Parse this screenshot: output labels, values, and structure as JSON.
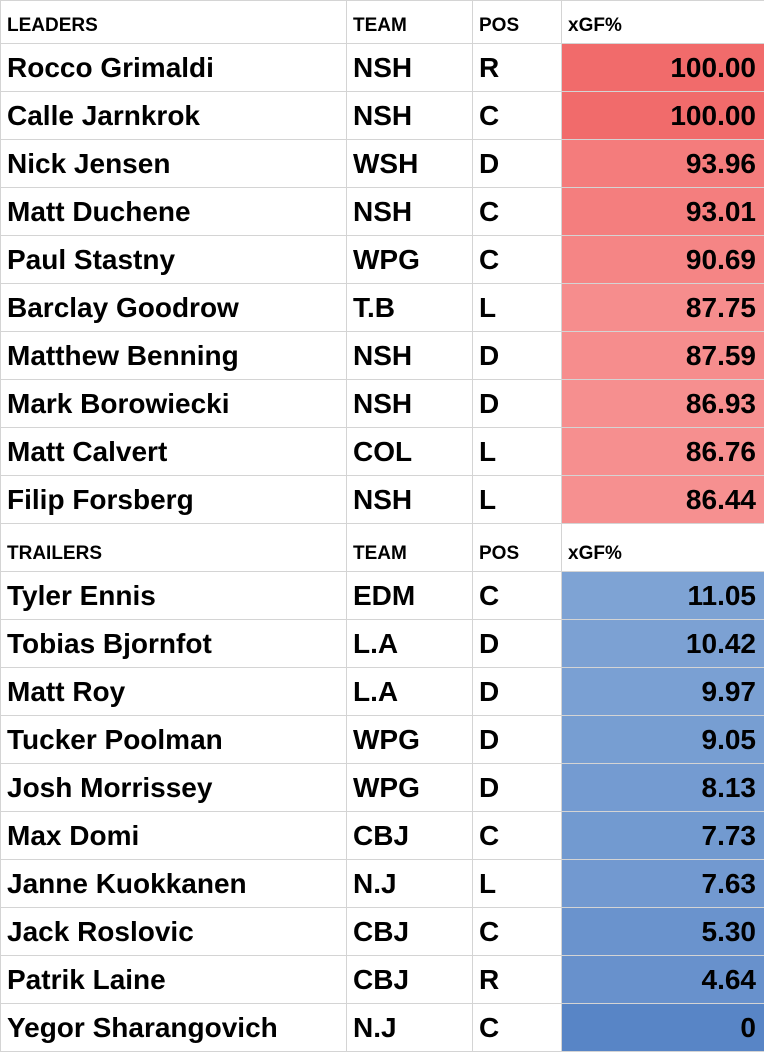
{
  "leaders": {
    "header": {
      "name": "LEADERS",
      "team": "TEAM",
      "pos": "POS",
      "stat": "xGF%"
    },
    "rows": [
      {
        "name": "Rocco Grimaldi",
        "team": "NSH",
        "pos": "R",
        "value": "100.00",
        "bg": "#f16b6b"
      },
      {
        "name": "Calle Jarnkrok",
        "team": "NSH",
        "pos": "C",
        "value": "100.00",
        "bg": "#f16b6b"
      },
      {
        "name": "Nick Jensen",
        "team": "WSH",
        "pos": "D",
        "value": "93.96",
        "bg": "#f47c7c"
      },
      {
        "name": "Matt Duchene",
        "team": "NSH",
        "pos": "C",
        "value": "93.01",
        "bg": "#f47e7e"
      },
      {
        "name": "Paul Stastny",
        "team": "WPG",
        "pos": "C",
        "value": "90.69",
        "bg": "#f58585"
      },
      {
        "name": "Barclay Goodrow",
        "team": "T.B",
        "pos": "L",
        "value": "87.75",
        "bg": "#f68d8d"
      },
      {
        "name": "Matthew Benning",
        "team": "NSH",
        "pos": "D",
        "value": "87.59",
        "bg": "#f68d8d"
      },
      {
        "name": "Mark Borowiecki",
        "team": "NSH",
        "pos": "D",
        "value": "86.93",
        "bg": "#f68f8f"
      },
      {
        "name": "Matt Calvert",
        "team": "COL",
        "pos": "L",
        "value": "86.76",
        "bg": "#f68f8f"
      },
      {
        "name": "Filip Forsberg",
        "team": "NSH",
        "pos": "L",
        "value": "86.44",
        "bg": "#f69090"
      }
    ]
  },
  "trailers": {
    "header": {
      "name": "TRAILERS",
      "team": "TEAM",
      "pos": "POS",
      "stat": "xGF%"
    },
    "rows": [
      {
        "name": "Tyler Ennis",
        "team": "EDM",
        "pos": "C",
        "value": "11.05",
        "bg": "#7ea3d4"
      },
      {
        "name": "Tobias Bjornfot",
        "team": "L.A",
        "pos": "D",
        "value": "10.42",
        "bg": "#7ca1d3"
      },
      {
        "name": "Matt Roy",
        "team": "L.A",
        "pos": "D",
        "value": "9.97",
        "bg": "#7aa0d3"
      },
      {
        "name": "Tucker Poolman",
        "team": "WPG",
        "pos": "D",
        "value": "9.05",
        "bg": "#779ed2"
      },
      {
        "name": "Josh Morrissey",
        "team": "WPG",
        "pos": "D",
        "value": "8.13",
        "bg": "#749bd1"
      },
      {
        "name": "Max Domi",
        "team": "CBJ",
        "pos": "C",
        "value": "7.73",
        "bg": "#729ad0"
      },
      {
        "name": "Janne Kuokkanen",
        "team": "N.J",
        "pos": "L",
        "value": "7.63",
        "bg": "#7299d0"
      },
      {
        "name": "Jack Roslovic",
        "team": "CBJ",
        "pos": "C",
        "value": "5.30",
        "bg": "#6a93cd"
      },
      {
        "name": "Patrik Laine",
        "team": "CBJ",
        "pos": "R",
        "value": "4.64",
        "bg": "#6891cc"
      },
      {
        "name": "Yegor Sharangovich",
        "team": "N.J",
        "pos": "C",
        "value": "0",
        "bg": "#5885c6"
      }
    ]
  }
}
